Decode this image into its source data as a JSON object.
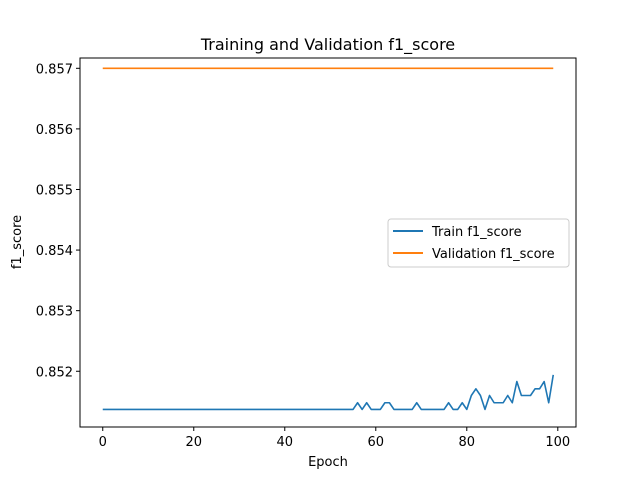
{
  "chart_data": {
    "type": "line",
    "title": "Training and Validation f1_score",
    "xlabel": "Epoch",
    "ylabel": "f1_score",
    "xlim": [
      -5,
      104
    ],
    "ylim": [
      0.85108,
      0.85717
    ],
    "xticks": [
      0,
      20,
      40,
      60,
      80,
      100
    ],
    "yticks": [
      0.852,
      0.853,
      0.854,
      0.855,
      0.856,
      0.857
    ],
    "grid": false,
    "legend": "center-right",
    "colors": {
      "train": "#1f77b4",
      "validation": "#ff7f0e"
    },
    "series": [
      {
        "name": "Train f1_score",
        "x": [
          0,
          1,
          2,
          3,
          4,
          5,
          6,
          7,
          8,
          9,
          10,
          11,
          12,
          13,
          14,
          15,
          16,
          17,
          18,
          19,
          20,
          21,
          22,
          23,
          24,
          25,
          26,
          27,
          28,
          29,
          30,
          31,
          32,
          33,
          34,
          35,
          36,
          37,
          38,
          39,
          40,
          41,
          42,
          43,
          44,
          45,
          46,
          47,
          48,
          49,
          50,
          51,
          52,
          53,
          54,
          55,
          56,
          57,
          58,
          59,
          60,
          61,
          62,
          63,
          64,
          65,
          66,
          67,
          68,
          69,
          70,
          71,
          72,
          73,
          74,
          75,
          76,
          77,
          78,
          79,
          80,
          81,
          82,
          83,
          84,
          85,
          86,
          87,
          88,
          89,
          90,
          91,
          92,
          93,
          94,
          95,
          96,
          97,
          98,
          99
        ],
        "y": [
          0.85137,
          0.85137,
          0.85137,
          0.85137,
          0.85137,
          0.85137,
          0.85137,
          0.85137,
          0.85137,
          0.85137,
          0.85137,
          0.85137,
          0.85137,
          0.85137,
          0.85137,
          0.85137,
          0.85137,
          0.85137,
          0.85137,
          0.85137,
          0.85137,
          0.85137,
          0.85137,
          0.85137,
          0.85137,
          0.85137,
          0.85137,
          0.85137,
          0.85137,
          0.85137,
          0.85137,
          0.85137,
          0.85137,
          0.85137,
          0.85137,
          0.85137,
          0.85137,
          0.85137,
          0.85137,
          0.85137,
          0.85137,
          0.85137,
          0.85137,
          0.85137,
          0.85137,
          0.85137,
          0.85137,
          0.85137,
          0.85137,
          0.85137,
          0.85137,
          0.85137,
          0.85137,
          0.85137,
          0.85137,
          0.85137,
          0.85148,
          0.85137,
          0.85148,
          0.85137,
          0.85137,
          0.85137,
          0.85148,
          0.85148,
          0.85137,
          0.85137,
          0.85137,
          0.85137,
          0.85137,
          0.85148,
          0.85137,
          0.85137,
          0.85137,
          0.85137,
          0.85137,
          0.85137,
          0.85148,
          0.85137,
          0.85137,
          0.85148,
          0.85137,
          0.8516,
          0.85171,
          0.8516,
          0.85137,
          0.8516,
          0.85148,
          0.85148,
          0.85148,
          0.8516,
          0.85148,
          0.85183,
          0.8516,
          0.8516,
          0.8516,
          0.85171,
          0.85171,
          0.85183,
          0.85148,
          0.85194
        ]
      },
      {
        "name": "Validation f1_score",
        "x": [
          0,
          99
        ],
        "y": [
          0.857,
          0.857
        ]
      }
    ]
  }
}
